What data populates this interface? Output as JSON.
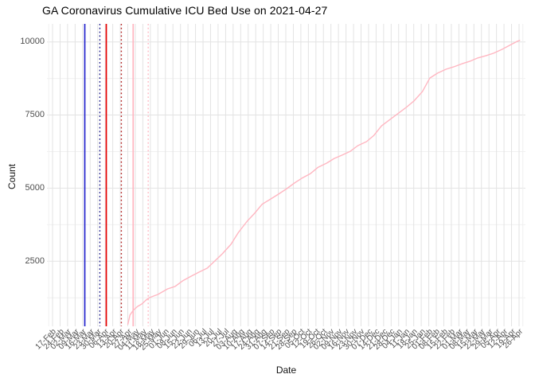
{
  "chart_data": {
    "type": "line",
    "title": "GA Coronavirus Cumulative ICU Bed Use on 2021-04-27",
    "xlabel": "Date",
    "ylabel": "Count",
    "y_ticks": [
      2500,
      5000,
      7500,
      10000
    ],
    "y_minor_ticks": [
      1250,
      3750,
      6250,
      8750
    ],
    "ylim": [
      280,
      10610
    ],
    "x_tick_start": "2020-02-17",
    "x_tick_interval_days": 7,
    "x_tick_labels": [
      "17-Feb",
      "24-Feb",
      "02-Mar",
      "09-Mar",
      "16-Mar",
      "23-Mar",
      "30-Mar",
      "06-Apr",
      "13-Apr",
      "20-Apr",
      "27-Apr",
      "04-May",
      "11-May",
      "18-May",
      "25-May",
      "01-Jun",
      "08-Jun",
      "15-Jun",
      "22-Jun",
      "29-Jun",
      "06-Jul",
      "13-Jul",
      "20-Jul",
      "27-Jul",
      "03-Aug",
      "10-Aug",
      "17-Aug",
      "24-Aug",
      "31-Aug",
      "07-Sep",
      "14-Sep",
      "21-Sep",
      "28-Sep",
      "05-Oct",
      "12-Oct",
      "19-Oct",
      "26-Oct",
      "02-Nov",
      "09-Nov",
      "16-Nov",
      "23-Nov",
      "30-Nov",
      "07-Dec",
      "14-Dec",
      "21-Dec",
      "28-Dec",
      "04-Jan",
      "11-Jan",
      "18-Jan",
      "25-Jan",
      "01-Feb",
      "08-Feb",
      "15-Feb",
      "22-Feb",
      "01-Mar",
      "08-Mar",
      "15-Mar",
      "22-Mar",
      "29-Mar",
      "05-Apr",
      "12-Apr",
      "19-Apr",
      "26-Apr"
    ],
    "grid": {
      "vertical": "weekly",
      "legend": "none"
    },
    "series": [
      {
        "name": "cumulative-icu-bed-use",
        "color": "#FFB6C1",
        "points": [
          [
            "2020-04-27",
            330
          ],
          [
            "2020-04-29",
            660
          ],
          [
            "2020-05-02",
            820
          ],
          [
            "2020-05-06",
            955
          ],
          [
            "2020-05-10",
            1040
          ],
          [
            "2020-05-14",
            1175
          ],
          [
            "2020-05-17",
            1255
          ],
          [
            "2020-05-21",
            1310
          ],
          [
            "2020-05-25",
            1365
          ],
          [
            "2020-06-03",
            1555
          ],
          [
            "2020-06-10",
            1640
          ],
          [
            "2020-06-17",
            1830
          ],
          [
            "2020-06-25",
            1990
          ],
          [
            "2020-07-02",
            2125
          ],
          [
            "2020-07-10",
            2265
          ],
          [
            "2020-07-17",
            2510
          ],
          [
            "2020-07-24",
            2755
          ],
          [
            "2020-08-01",
            3080
          ],
          [
            "2020-08-08",
            3490
          ],
          [
            "2020-08-16",
            3870
          ],
          [
            "2020-08-23",
            4140
          ],
          [
            "2020-08-30",
            4450
          ],
          [
            "2020-09-07",
            4630
          ],
          [
            "2020-09-14",
            4790
          ],
          [
            "2020-09-22",
            4985
          ],
          [
            "2020-09-29",
            5175
          ],
          [
            "2020-10-06",
            5340
          ],
          [
            "2020-10-14",
            5500
          ],
          [
            "2020-10-21",
            5715
          ],
          [
            "2020-10-29",
            5855
          ],
          [
            "2020-11-05",
            6015
          ],
          [
            "2020-11-12",
            6125
          ],
          [
            "2020-11-20",
            6260
          ],
          [
            "2020-11-27",
            6455
          ],
          [
            "2020-12-05",
            6590
          ],
          [
            "2020-12-12",
            6805
          ],
          [
            "2020-12-19",
            7130
          ],
          [
            "2020-12-27",
            7350
          ],
          [
            "2021-01-03",
            7540
          ],
          [
            "2021-01-11",
            7760
          ],
          [
            "2021-01-18",
            7975
          ],
          [
            "2021-01-26",
            8300
          ],
          [
            "2021-02-02",
            8765
          ],
          [
            "2021-02-09",
            8930
          ],
          [
            "2021-02-17",
            9065
          ],
          [
            "2021-02-24",
            9145
          ],
          [
            "2021-03-04",
            9255
          ],
          [
            "2021-03-11",
            9335
          ],
          [
            "2021-03-18",
            9445
          ],
          [
            "2021-03-26",
            9525
          ],
          [
            "2021-04-02",
            9610
          ],
          [
            "2021-04-10",
            9745
          ],
          [
            "2021-04-17",
            9880
          ],
          [
            "2021-04-24",
            10015
          ],
          [
            "2021-04-27",
            10060
          ]
        ]
      }
    ],
    "event_lines": [
      {
        "name": "blue-solid",
        "date": "2020-03-18",
        "color": "#2222CC",
        "style": "solid"
      },
      {
        "name": "blue-dotted",
        "date": "2020-04-01",
        "color": "#20208C",
        "style": "dotted"
      },
      {
        "name": "red-solid",
        "date": "2020-04-07",
        "color": "#E60000",
        "style": "solid"
      },
      {
        "name": "red-dotted",
        "date": "2020-04-21",
        "color": "#B22222",
        "style": "dotted"
      },
      {
        "name": "pink-solid",
        "date": "2020-05-02",
        "color": "#FFB6C1",
        "style": "solid"
      },
      {
        "name": "pink-dotted",
        "date": "2020-05-16",
        "color": "#FFB6C1",
        "style": "dotted"
      }
    ],
    "colors": {
      "background": "#FFFFFF",
      "grid_major": "#E3E3E3",
      "grid_minor": "#F0F0F0",
      "axis_text": "#4D4D4D",
      "title_text": "#000000"
    }
  }
}
